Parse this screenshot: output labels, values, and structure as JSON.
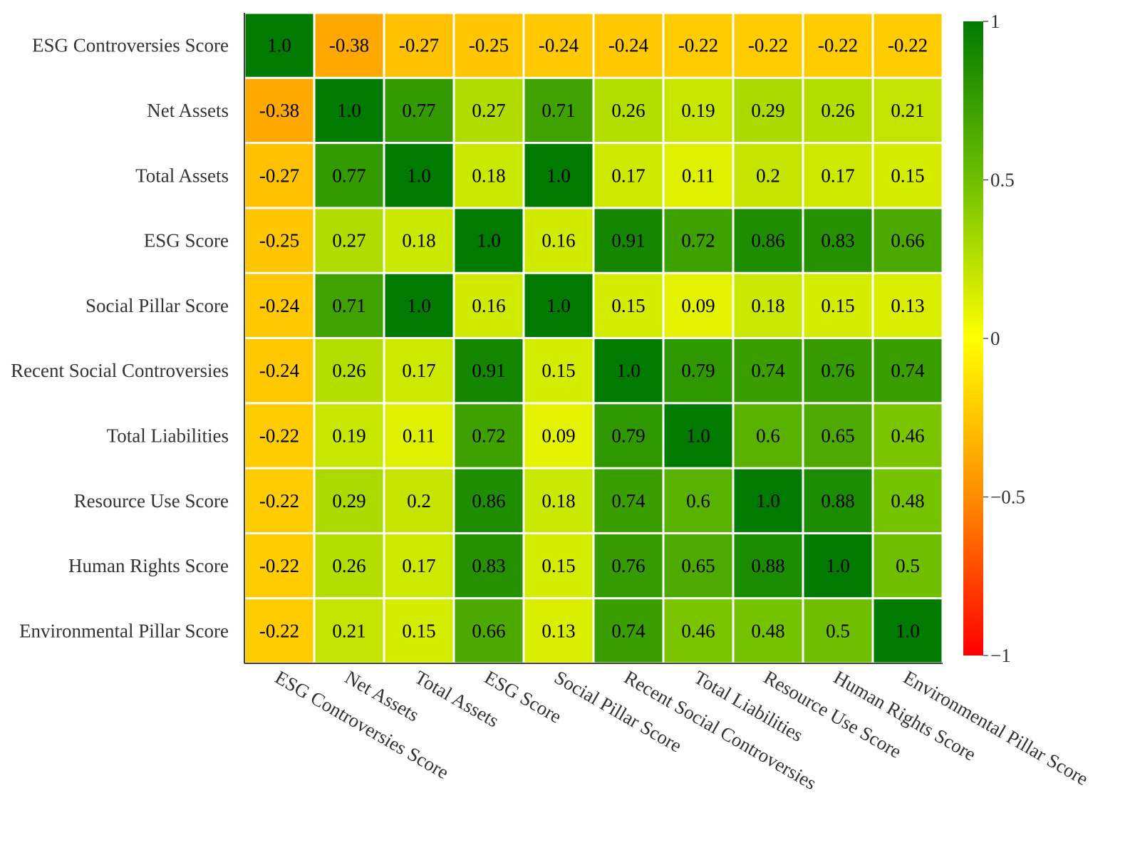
{
  "chart_data": {
    "type": "heatmap",
    "title": "",
    "xlabel": "",
    "ylabel": "",
    "x_categories": [
      "ESG Controversies Score",
      "Net Assets",
      "Total Assets",
      "ESG Score",
      "Social Pillar Score",
      "Recent Social Controversies",
      "Total Liabilities",
      "Resource Use Score",
      "Human Rights Score",
      "Environmental Pillar Score"
    ],
    "y_categories": [
      "ESG Controversies Score",
      "Net Assets",
      "Total Assets",
      "ESG Score",
      "Social Pillar Score",
      "Recent Social Controversies",
      "Total Liabilities",
      "Resource Use Score",
      "Human Rights Score",
      "Environmental Pillar Score"
    ],
    "values": [
      [
        1.0,
        -0.38,
        -0.27,
        -0.25,
        -0.24,
        -0.24,
        -0.22,
        -0.22,
        -0.22,
        -0.22
      ],
      [
        -0.38,
        1.0,
        0.77,
        0.27,
        0.71,
        0.26,
        0.19,
        0.29,
        0.26,
        0.21
      ],
      [
        -0.27,
        0.77,
        1.0,
        0.18,
        1.0,
        0.17,
        0.11,
        0.2,
        0.17,
        0.15
      ],
      [
        -0.25,
        0.27,
        0.18,
        1.0,
        0.16,
        0.91,
        0.72,
        0.86,
        0.83,
        0.66
      ],
      [
        -0.24,
        0.71,
        1.0,
        0.16,
        1.0,
        0.15,
        0.09,
        0.18,
        0.15,
        0.13
      ],
      [
        -0.24,
        0.26,
        0.17,
        0.91,
        0.15,
        1.0,
        0.79,
        0.74,
        0.76,
        0.74
      ],
      [
        -0.22,
        0.19,
        0.11,
        0.72,
        0.09,
        0.79,
        1.0,
        0.6,
        0.65,
        0.46
      ],
      [
        -0.22,
        0.29,
        0.2,
        0.86,
        0.18,
        0.74,
        0.6,
        1.0,
        0.88,
        0.48
      ],
      [
        -0.22,
        0.26,
        0.17,
        0.83,
        0.15,
        0.76,
        0.65,
        0.88,
        1.0,
        0.5
      ],
      [
        -0.22,
        0.21,
        0.15,
        0.66,
        0.13,
        0.74,
        0.46,
        0.48,
        0.5,
        1.0
      ]
    ],
    "cell_labels": [
      [
        "1.0",
        "-0.38",
        "-0.27",
        "-0.25",
        "-0.24",
        "-0.24",
        "-0.22",
        "-0.22",
        "-0.22",
        "-0.22"
      ],
      [
        "-0.38",
        "1.0",
        "0.77",
        "0.27",
        "0.71",
        "0.26",
        "0.19",
        "0.29",
        "0.26",
        "0.21"
      ],
      [
        "-0.27",
        "0.77",
        "1.0",
        "0.18",
        "1.0",
        "0.17",
        "0.11",
        "0.2",
        "0.17",
        "0.15"
      ],
      [
        "-0.25",
        "0.27",
        "0.18",
        "1.0",
        "0.16",
        "0.91",
        "0.72",
        "0.86",
        "0.83",
        "0.66"
      ],
      [
        "-0.24",
        "0.71",
        "1.0",
        "0.16",
        "1.0",
        "0.15",
        "0.09",
        "0.18",
        "0.15",
        "0.13"
      ],
      [
        "-0.24",
        "0.26",
        "0.17",
        "0.91",
        "0.15",
        "1.0",
        "0.79",
        "0.74",
        "0.76",
        "0.74"
      ],
      [
        "-0.22",
        "0.19",
        "0.11",
        "0.72",
        "0.09",
        "0.79",
        "1.0",
        "0.6",
        "0.65",
        "0.46"
      ],
      [
        "-0.22",
        "0.29",
        "0.2",
        "0.86",
        "0.18",
        "0.74",
        "0.6",
        "1.0",
        "0.88",
        "0.48"
      ],
      [
        "-0.22",
        "0.26",
        "0.17",
        "0.83",
        "0.15",
        "0.76",
        "0.65",
        "0.88",
        "1.0",
        "0.5"
      ],
      [
        "-0.22",
        "0.21",
        "0.15",
        "0.66",
        "0.13",
        "0.74",
        "0.46",
        "0.48",
        "0.5",
        "1.0"
      ]
    ],
    "colorscale": {
      "range": [
        -1,
        1
      ],
      "stops": [
        {
          "value": -1,
          "color": "#ff0000"
        },
        {
          "value": -0.5,
          "color": "#ff8c00"
        },
        {
          "value": 0,
          "color": "#ffff00"
        },
        {
          "value": 0.5,
          "color": "#6fbf00"
        },
        {
          "value": 1,
          "color": "#007a00"
        }
      ],
      "ticks": [
        {
          "value": 1,
          "label": "1"
        },
        {
          "value": 0.5,
          "label": "0.5"
        },
        {
          "value": 0,
          "label": "0"
        },
        {
          "value": -0.5,
          "label": "−0.5"
        },
        {
          "value": -1,
          "label": "−1"
        }
      ]
    },
    "grid": false,
    "legend": "colorbar-right"
  }
}
